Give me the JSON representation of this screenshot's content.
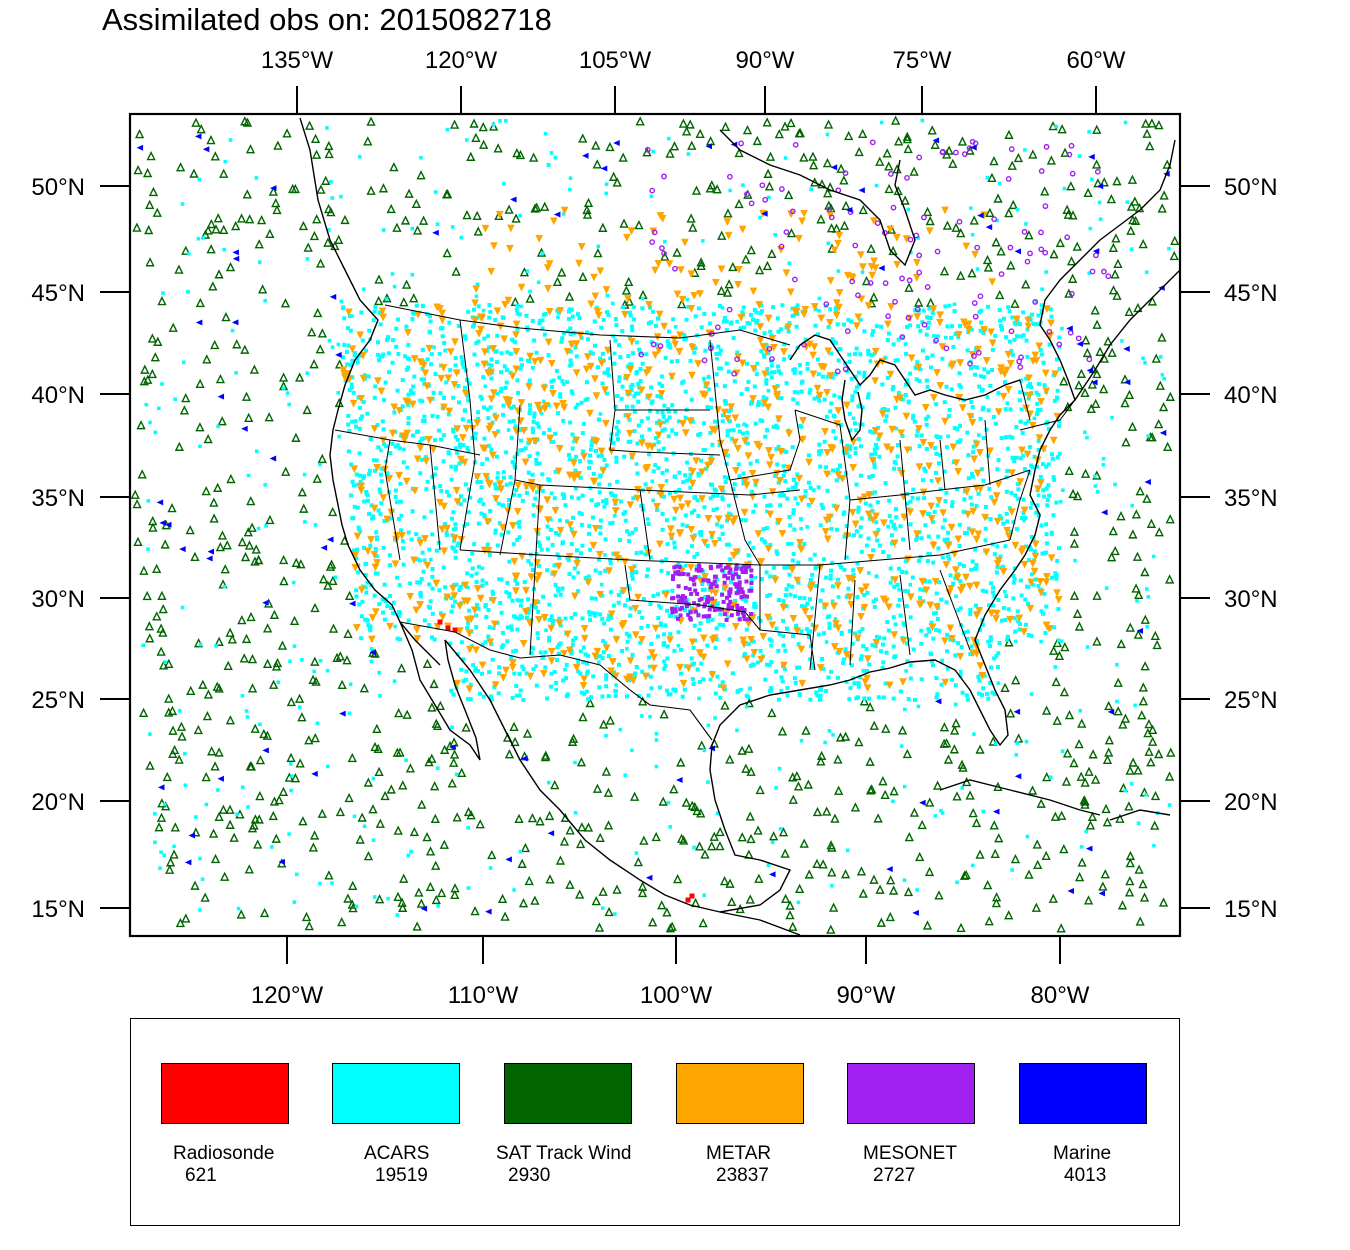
{
  "title": "Assimilated obs on: 2015082718",
  "axes": {
    "top_lon_labels": [
      "135°W",
      "120°W",
      "105°W",
      "90°W",
      "75°W",
      "60°W"
    ],
    "bottom_lon_labels": [
      "120°W",
      "110°W",
      "100°W",
      "90°W",
      "80°W"
    ],
    "lat_labels": [
      "50°N",
      "45°N",
      "40°N",
      "35°N",
      "30°N",
      "25°N",
      "20°N",
      "15°N"
    ]
  },
  "legend": [
    {
      "name": "Radiosonde",
      "count": "621",
      "color": "#ff0000"
    },
    {
      "name": "ACARS",
      "count": "19519",
      "color": "#00ffff"
    },
    {
      "name": "SAT Track Wind",
      "count": "2930",
      "color": "#006400"
    },
    {
      "name": "METAR",
      "count": "23837",
      "color": "#ffa500"
    },
    {
      "name": "MESONET",
      "count": "2727",
      "color": "#a020f0"
    },
    {
      "name": "Marine",
      "count": "4013",
      "color": "#0000ff"
    }
  ],
  "colors": {
    "land_lines": "#000000",
    "frame": "#000000"
  }
}
